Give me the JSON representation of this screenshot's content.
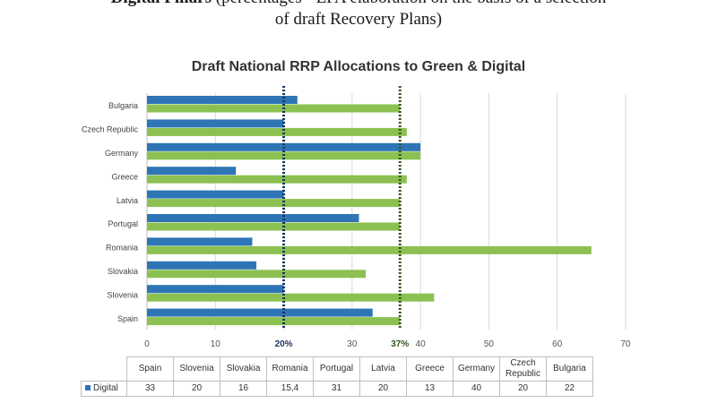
{
  "caption": {
    "bold": "Digital Pillars",
    "line1_rest": " (percentages - EPA elaboration on the basis of a selection",
    "line2": "of draft Recovery Plans)"
  },
  "colors": {
    "digital": "#2e75b6",
    "green": "#8cc152",
    "digital_line": "#17375e",
    "green_line": "#375623"
  },
  "chart_data": {
    "type": "bar",
    "orientation": "horizontal",
    "title": "Draft National RRP Allocations to Green & Digital",
    "categories": [
      "Bulgaria",
      "Czech Republic",
      "Germany",
      "Greece",
      "Latvia",
      "Portugal",
      "Romania",
      "Slovakia",
      "Slovenia",
      "Spain"
    ],
    "series": [
      {
        "name": "Digital",
        "values": [
          22,
          20,
          40,
          13,
          20,
          31,
          15.4,
          16,
          20,
          33
        ]
      },
      {
        "name": "",
        "values": [
          37,
          38,
          40,
          38,
          37,
          37,
          65,
          32,
          42,
          37
        ]
      }
    ],
    "xlim": [
      0,
      70
    ],
    "xticks": [
      "0",
      "10",
      "20",
      "30",
      "40",
      "50",
      "60",
      "70"
    ],
    "reference_lines": [
      {
        "value": 20,
        "label": "20%",
        "style": "dotted"
      },
      {
        "value": 37,
        "label": "37%",
        "style": "dotted"
      }
    ],
    "grid": true,
    "legend": "table"
  },
  "table": {
    "columns": [
      "Spain",
      "Slovenia",
      "Slovakia",
      "Romania",
      "Portugal",
      "Latvia",
      "Greece",
      "Germany",
      "Czech\nRepublic",
      "Bulgaria"
    ],
    "row_label": "Digital",
    "values": [
      "33",
      "20",
      "16",
      "15,4",
      "31",
      "20",
      "13",
      "40",
      "20",
      "22"
    ]
  }
}
